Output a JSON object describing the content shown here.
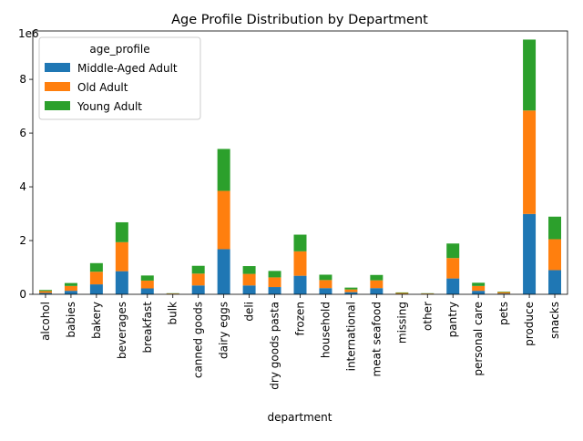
{
  "chart_data": {
    "type": "bar",
    "stacked": true,
    "title": "Age Profile Distribution by Department",
    "xlabel": "department",
    "ylabel": "",
    "y_offset_label": "1e6",
    "ylim": [
      0,
      9.8
    ],
    "y_unit_multiplier": 1000000,
    "y_ticks": [
      0,
      2,
      4,
      6,
      8
    ],
    "legend_title": "age_profile",
    "legend_position": "top-left",
    "grid": false,
    "categories": [
      "alcohol",
      "babies",
      "bakery",
      "beverages",
      "breakfast",
      "bulk",
      "canned goods",
      "dairy eggs",
      "deli",
      "dry goods pasta",
      "frozen",
      "household",
      "international",
      "meat seafood",
      "missing",
      "other",
      "pantry",
      "personal care",
      "pets",
      "produce",
      "snacks"
    ],
    "series": [
      {
        "name": "Middle-Aged Adult",
        "color": "#1f77b4",
        "values": [
          0.05,
          0.13,
          0.37,
          0.86,
          0.22,
          0.01,
          0.33,
          1.68,
          0.33,
          0.27,
          0.69,
          0.23,
          0.08,
          0.23,
          0.02,
          0.01,
          0.59,
          0.13,
          0.03,
          2.99,
          0.9
        ]
      },
      {
        "name": "Old Adult",
        "color": "#ff7f0e",
        "values": [
          0.07,
          0.18,
          0.47,
          1.08,
          0.29,
          0.02,
          0.44,
          2.17,
          0.43,
          0.36,
          0.91,
          0.3,
          0.1,
          0.29,
          0.03,
          0.02,
          0.76,
          0.18,
          0.05,
          3.85,
          1.15
        ]
      },
      {
        "name": "Young Adult",
        "color": "#2ca02c",
        "values": [
          0.04,
          0.11,
          0.32,
          0.74,
          0.19,
          0.01,
          0.29,
          1.56,
          0.29,
          0.24,
          0.62,
          0.2,
          0.07,
          0.2,
          0.02,
          0.01,
          0.54,
          0.12,
          0.02,
          2.64,
          0.84
        ]
      }
    ]
  }
}
